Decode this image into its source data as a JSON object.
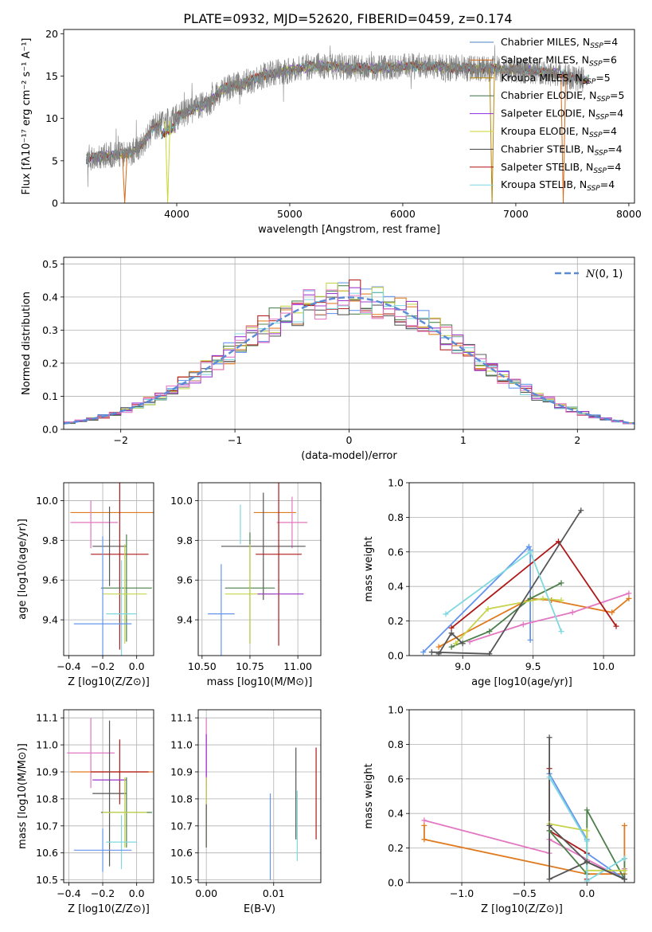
{
  "title": "PLATE=0932, MJD=52620, FIBERID=0459, z=0.174",
  "colors": {
    "chabrier_miles": "#4a7fbf",
    "salpeter_miles": "#d46a1a",
    "kroupa_miles": "#b8860b",
    "chabrier_elodie": "#3b6e47",
    "salpeter_elodie": "#8a2be2",
    "kroupa_elodie": "#c8d630",
    "chabrier_stelib": "#404040",
    "salpeter_stelib": "#b01010",
    "kroupa_stelib": "#7fd7e3",
    "data": "#808080",
    "normal": "#5b8bd6",
    "a": "#6495ed",
    "b": "#e07a1f",
    "c": "#e377c2",
    "d": "#4c7f4c",
    "e": "#b01818",
    "f": "#c5d44a",
    "g": "#555555",
    "h": "#7fd8e0",
    "i": "#9933cc"
  },
  "chart_data": [
    {
      "type": "line",
      "id": "spectrum",
      "xlabel": "wavelength [Angstrom, rest frame]",
      "ylabel": "Flux [fλ10⁻¹⁷ erg cm⁻² s⁻¹ A⁻¹]",
      "xlim": [
        3000,
        8050
      ],
      "ylim": [
        0,
        20.5
      ],
      "xticks": [
        4000,
        5000,
        6000,
        7000,
        8000
      ],
      "yticks": [
        0,
        5,
        10,
        15,
        20
      ],
      "legend_position": "top-right",
      "continuum": {
        "x": [
          3200,
          3400,
          3600,
          3700,
          3800,
          3900,
          4000,
          4100,
          4200,
          4300,
          4400,
          4600,
          4800,
          5000,
          5200,
          5400,
          5600,
          5800,
          6000,
          6200,
          6400,
          6600,
          6800,
          7000,
          7200,
          7400,
          7600
        ],
        "y": [
          5.3,
          5.6,
          6.0,
          7.0,
          9.0,
          9.6,
          10.2,
          10.8,
          11.4,
          12.0,
          13.4,
          14.2,
          15.2,
          15.7,
          16.2,
          16.1,
          15.9,
          16.0,
          16.1,
          16.2,
          16.0,
          15.9,
          15.9,
          15.7,
          15.6,
          15.2,
          14.6
        ]
      },
      "series": [
        {
          "name": "Chabrier MILES, N_SSP=4",
          "color_key": "chabrier_miles"
        },
        {
          "name": "Salpeter MILES, N_SSP=6",
          "color_key": "salpeter_miles"
        },
        {
          "name": "Kroupa MILES, N_SSP=5",
          "color_key": "kroupa_miles"
        },
        {
          "name": "Chabrier ELODIE, N_SSP=5",
          "color_key": "chabrier_elodie"
        },
        {
          "name": "Salpeter ELODIE, N_SSP=4",
          "color_key": "salpeter_elodie"
        },
        {
          "name": "Kroupa ELODIE, N_SSP=4",
          "color_key": "kroupa_elodie"
        },
        {
          "name": "Chabrier STELIB, N_SSP=4",
          "color_key": "chabrier_stelib"
        },
        {
          "name": "Salpeter STELIB, N_SSP=4",
          "color_key": "salpeter_stelib"
        },
        {
          "name": "Kroupa STELIB, N_SSP=4",
          "color_key": "kroupa_stelib"
        }
      ],
      "legend": [
        {
          "pre": "Chabrier MILES, N",
          "sub": "SSP",
          "post": "=4",
          "color_key": "chabrier_miles"
        },
        {
          "pre": "Salpeter MILES, N",
          "sub": "SSP",
          "post": "=6",
          "color_key": "salpeter_miles"
        },
        {
          "pre": "Kroupa MILES, N",
          "sub": "SSP",
          "post": "=5",
          "color_key": "kroupa_miles"
        },
        {
          "pre": "Chabrier ELODIE, N",
          "sub": "SSP",
          "post": "=5",
          "color_key": "chabrier_elodie"
        },
        {
          "pre": "Salpeter ELODIE, N",
          "sub": "SSP",
          "post": "=4",
          "color_key": "salpeter_elodie"
        },
        {
          "pre": "Kroupa ELODIE, N",
          "sub": "SSP",
          "post": "=4",
          "color_key": "kroupa_elodie"
        },
        {
          "pre": "Chabrier STELIB, N",
          "sub": "SSP",
          "post": "=4",
          "color_key": "chabrier_stelib"
        },
        {
          "pre": "Salpeter STELIB, N",
          "sub": "SSP",
          "post": "=4",
          "color_key": "salpeter_stelib"
        },
        {
          "pre": "Kroupa STELIB, N",
          "sub": "SSP",
          "post": "=4",
          "color_key": "kroupa_stelib"
        }
      ],
      "dropouts": [
        {
          "x": 3540,
          "color_key": "salpeter_miles"
        },
        {
          "x": 3920,
          "color_key": "kroupa_elodie"
        },
        {
          "x": 6790,
          "color_key": "kroupa_miles"
        },
        {
          "x": 7420,
          "color_key": "salpeter_miles"
        }
      ]
    },
    {
      "type": "bar",
      "id": "residuals",
      "xlabel": "(data-model)/error",
      "ylabel": "Normed distribution",
      "xlim": [
        -2.5,
        2.5
      ],
      "ylim": [
        0,
        0.52
      ],
      "xticks": [
        -2,
        -1,
        0,
        1,
        2
      ],
      "yticks": [
        0.0,
        0.1,
        0.2,
        0.3,
        0.4,
        0.5
      ],
      "grid": true,
      "bin_edges_start": -2.5,
      "bin_width": 0.1,
      "reference": {
        "label": "N(0,1)",
        "mean": 0,
        "sigma": 1,
        "color_key": "normal"
      },
      "legend_position": "top-right"
    },
    {
      "type": "scatter",
      "id": "age_vs_Z",
      "xlabel": "Z [log10(Z/Z⊙)]",
      "ylabel": "age  [log10(age/yr)]",
      "xlim": [
        -0.43,
        0.1
      ],
      "ylim": [
        9.22,
        10.09
      ],
      "xticks": [
        -0.4,
        -0.2,
        0.0
      ],
      "yticks": [
        9.4,
        9.6,
        9.8,
        10.0
      ],
      "grid": true,
      "points": [
        {
          "x": -0.08,
          "y": 9.94,
          "xerr": 0.31,
          "yerr": 0.0,
          "color_key": "b"
        },
        {
          "x": -0.25,
          "y": 9.89,
          "xerr": 0.14,
          "yerr": 0.0,
          "color_key": "c"
        },
        {
          "x": -0.27,
          "y": 9.88,
          "xerr": 0.0,
          "yerr": 0.12,
          "color_key": "c"
        },
        {
          "x": -0.16,
          "y": 9.77,
          "xerr": 0.1,
          "yerr": 0.2,
          "color_key": "g"
        },
        {
          "x": -0.1,
          "y": 9.73,
          "xerr": 0.17,
          "yerr": 0.48,
          "color_key": "e"
        },
        {
          "x": -0.06,
          "y": 9.56,
          "xerr": 0.15,
          "yerr": 0.27,
          "color_key": "d"
        },
        {
          "x": -0.07,
          "y": 9.53,
          "xerr": 0.13,
          "yerr": 0.25,
          "color_key": "f"
        },
        {
          "x": -0.09,
          "y": 9.43,
          "xerr": 0.09,
          "yerr": 0.27,
          "color_key": "h"
        },
        {
          "x": -0.2,
          "y": 9.38,
          "xerr": 0.17,
          "yerr": 0.44,
          "color_key": "a"
        }
      ]
    },
    {
      "type": "scatter",
      "id": "age_vs_mass",
      "xlabel": "mass [log10(M/M⊙)]",
      "ylabel": "",
      "xlim": [
        10.48,
        11.12
      ],
      "ylim": [
        9.22,
        10.09
      ],
      "xticks": [
        10.5,
        10.75,
        11.0
      ],
      "yticks": [
        9.4,
        9.6,
        9.8,
        10.0
      ],
      "grid": true,
      "points": [
        {
          "x": 10.88,
          "y": 9.94,
          "xerr": 0.11,
          "yerr": 0.0,
          "color_key": "b"
        },
        {
          "x": 10.97,
          "y": 9.89,
          "xerr": 0.08,
          "yerr": 0.13,
          "color_key": "c"
        },
        {
          "x": 10.7,
          "y": 9.88,
          "xerr": 0.0,
          "yerr": 0.1,
          "color_key": "h"
        },
        {
          "x": 10.82,
          "y": 9.77,
          "xerr": 0.22,
          "yerr": 0.27,
          "color_key": "g"
        },
        {
          "x": 10.9,
          "y": 9.73,
          "xerr": 0.12,
          "yerr": 0.46,
          "color_key": "e"
        },
        {
          "x": 10.75,
          "y": 9.56,
          "xerr": 0.13,
          "yerr": 0.28,
          "color_key": "d"
        },
        {
          "x": 10.75,
          "y": 9.53,
          "xerr": 0.13,
          "yerr": 0.25,
          "color_key": "f"
        },
        {
          "x": 10.6,
          "y": 9.43,
          "xerr": 0.07,
          "yerr": 0.25,
          "color_key": "a"
        },
        {
          "x": 10.91,
          "y": 9.53,
          "xerr": 0.12,
          "yerr": 0.0,
          "color_key": "i"
        }
      ]
    },
    {
      "type": "line",
      "id": "massweight_vs_age",
      "xlabel": "age  [log10(age/yr)]",
      "ylabel": "mass weight",
      "xlim": [
        8.62,
        10.22
      ],
      "ylim": [
        0,
        1.0
      ],
      "xticks": [
        9.0,
        9.5,
        10.0
      ],
      "yticks": [
        0.0,
        0.2,
        0.4,
        0.6,
        0.8,
        1.0
      ],
      "grid": true,
      "series": [
        {
          "color_key": "a",
          "x": [
            8.72,
            9.47,
            9.48,
            9.48
          ],
          "y": [
            0.02,
            0.63,
            0.61,
            0.09
          ]
        },
        {
          "color_key": "b",
          "x": [
            8.83,
            9.48,
            9.63,
            10.06,
            10.18
          ],
          "y": [
            0.05,
            0.33,
            0.32,
            0.25,
            0.33
          ]
        },
        {
          "color_key": "c",
          "x": [
            9.05,
            9.43,
            9.78,
            10.18
          ],
          "y": [
            0.08,
            0.18,
            0.25,
            0.36
          ]
        },
        {
          "color_key": "d",
          "x": [
            8.92,
            9.19,
            9.48,
            9.7
          ],
          "y": [
            0.05,
            0.14,
            0.33,
            0.42
          ]
        },
        {
          "color_key": "e",
          "x": [
            8.92,
            9.68,
            10.09
          ],
          "y": [
            0.16,
            0.66,
            0.17
          ]
        },
        {
          "color_key": "f",
          "x": [
            8.95,
            9.18,
            9.57,
            9.7
          ],
          "y": [
            0.07,
            0.27,
            0.33,
            0.32
          ]
        },
        {
          "color_key": "g",
          "x": [
            8.78,
            9.19,
            9.84
          ],
          "y": [
            0.02,
            0.01,
            0.84
          ]
        },
        {
          "color_key": "h",
          "x": [
            8.88,
            9.48,
            9.7
          ],
          "y": [
            0.24,
            0.6,
            0.14
          ]
        },
        {
          "color_key": "g",
          "x": [
            8.83,
            8.92,
            9.0
          ],
          "y": [
            0.01,
            0.13,
            0.07
          ]
        }
      ]
    },
    {
      "type": "scatter",
      "id": "mass_vs_Z",
      "xlabel": "Z [log10(Z/Z⊙)]",
      "ylabel": "mass [log10(M/M⊙)]",
      "xlim": [
        -0.43,
        0.1
      ],
      "ylim": [
        10.49,
        11.13
      ],
      "xticks": [
        -0.4,
        -0.2,
        0.0
      ],
      "yticks": [
        10.5,
        10.6,
        10.7,
        10.8,
        10.9,
        11.0,
        11.1
      ],
      "grid": true,
      "points": [
        {
          "x": -0.27,
          "y": 10.97,
          "xerr": 0.14,
          "yerr": 0.13,
          "color_key": "c"
        },
        {
          "x": -0.08,
          "y": 10.9,
          "xerr": 0.31,
          "yerr": 0.0,
          "color_key": "b"
        },
        {
          "x": -0.1,
          "y": 10.9,
          "xerr": 0.17,
          "yerr": 0.12,
          "color_key": "e"
        },
        {
          "x": -0.16,
          "y": 10.87,
          "xerr": 0.1,
          "yerr": 0.0,
          "color_key": "i"
        },
        {
          "x": -0.16,
          "y": 10.82,
          "xerr": 0.1,
          "yerr": 0.27,
          "color_key": "g"
        },
        {
          "x": -0.06,
          "y": 10.75,
          "xerr": 0.15,
          "yerr": 0.13,
          "color_key": "d"
        },
        {
          "x": -0.07,
          "y": 10.75,
          "xerr": 0.13,
          "yerr": 0.13,
          "color_key": "f"
        },
        {
          "x": -0.09,
          "y": 10.64,
          "xerr": 0.09,
          "yerr": 0.1,
          "color_key": "h"
        },
        {
          "x": -0.2,
          "y": 10.61,
          "xerr": 0.17,
          "yerr": 0.08,
          "color_key": "a"
        }
      ]
    },
    {
      "type": "scatter",
      "id": "mass_vs_ebv",
      "xlabel": "E(B-V)",
      "ylabel": "",
      "xlim": [
        -0.0012,
        0.017
      ],
      "ylim": [
        10.49,
        11.13
      ],
      "xticks": [
        0.0,
        0.01
      ],
      "xticklabels": [
        "0.00",
        "0.01"
      ],
      "yticks": [
        10.5,
        10.6,
        10.7,
        10.8,
        10.9,
        11.0,
        11.1
      ],
      "grid": true,
      "points": [
        {
          "x": 0.0,
          "y": 10.97,
          "xerr": 0,
          "yerr": 0.13,
          "color_key": "c"
        },
        {
          "x": 0.0,
          "y": 10.9,
          "xerr": 0,
          "yerr": 0.14,
          "color_key": "i"
        },
        {
          "x": 0.0,
          "y": 10.75,
          "xerr": 0,
          "yerr": 0.13,
          "color_key": "f"
        },
        {
          "x": 0.0,
          "y": 10.7,
          "xerr": 0,
          "yerr": 0.08,
          "color_key": "g"
        },
        {
          "x": 0.0095,
          "y": 10.66,
          "xerr": 0,
          "yerr": 0.16,
          "color_key": "a"
        },
        {
          "x": 0.0133,
          "y": 10.82,
          "xerr": 0,
          "yerr": 0.17,
          "color_key": "g"
        },
        {
          "x": 0.0135,
          "y": 10.7,
          "xerr": 0,
          "yerr": 0.13,
          "color_key": "h"
        },
        {
          "x": 0.0163,
          "y": 10.82,
          "xerr": 0,
          "yerr": 0.17,
          "color_key": "e"
        }
      ]
    },
    {
      "type": "line",
      "id": "massweight_vs_Z",
      "xlabel": "Z [log10(Z/Z⊙)]",
      "ylabel": "mass weight",
      "xlim": [
        -1.42,
        0.38
      ],
      "ylim": [
        0,
        1.0
      ],
      "xticks": [
        -1.0,
        -0.5,
        0.0
      ],
      "yticks": [
        0.0,
        0.2,
        0.4,
        0.6,
        0.8,
        1.0
      ],
      "grid": true,
      "series": [
        {
          "color_key": "c",
          "x": [
            -1.3,
            -0.3,
            -0.3,
            0.3,
            0.3
          ],
          "y": [
            0.36,
            0.17,
            0.25,
            0.02,
            0.08
          ]
        },
        {
          "color_key": "b",
          "x": [
            -1.3,
            -1.3,
            0.0,
            0.3,
            0.3
          ],
          "y": [
            0.33,
            0.25,
            0.05,
            0.05,
            0.33
          ]
        },
        {
          "color_key": "a",
          "x": [
            -0.3,
            0.0,
            0.0,
            0.3
          ],
          "y": [
            0.63,
            0.25,
            0.17,
            0.02
          ]
        },
        {
          "color_key": "e",
          "x": [
            -0.3,
            -0.3,
            0.0,
            0.0
          ],
          "y": [
            0.66,
            0.3,
            0.17,
            0.02
          ]
        },
        {
          "color_key": "g",
          "x": [
            -0.3,
            -0.3,
            0.0,
            0.3
          ],
          "y": [
            0.84,
            0.02,
            0.12,
            0.02
          ]
        },
        {
          "color_key": "d",
          "x": [
            -0.3,
            0.0,
            0.0,
            0.3,
            0.3
          ],
          "y": [
            0.3,
            0.05,
            0.42,
            0.02,
            0.14
          ]
        },
        {
          "color_key": "f",
          "x": [
            -0.3,
            0.0,
            0.0,
            0.3
          ],
          "y": [
            0.34,
            0.3,
            0.07,
            0.07
          ]
        },
        {
          "color_key": "h",
          "x": [
            -0.3,
            0.0,
            0.0,
            0.3
          ],
          "y": [
            0.61,
            0.24,
            0.01,
            0.14
          ]
        },
        {
          "color_key": "g",
          "x": [
            -0.3,
            0.0,
            0.3
          ],
          "y": [
            0.33,
            0.12,
            0.02
          ]
        }
      ]
    }
  ]
}
